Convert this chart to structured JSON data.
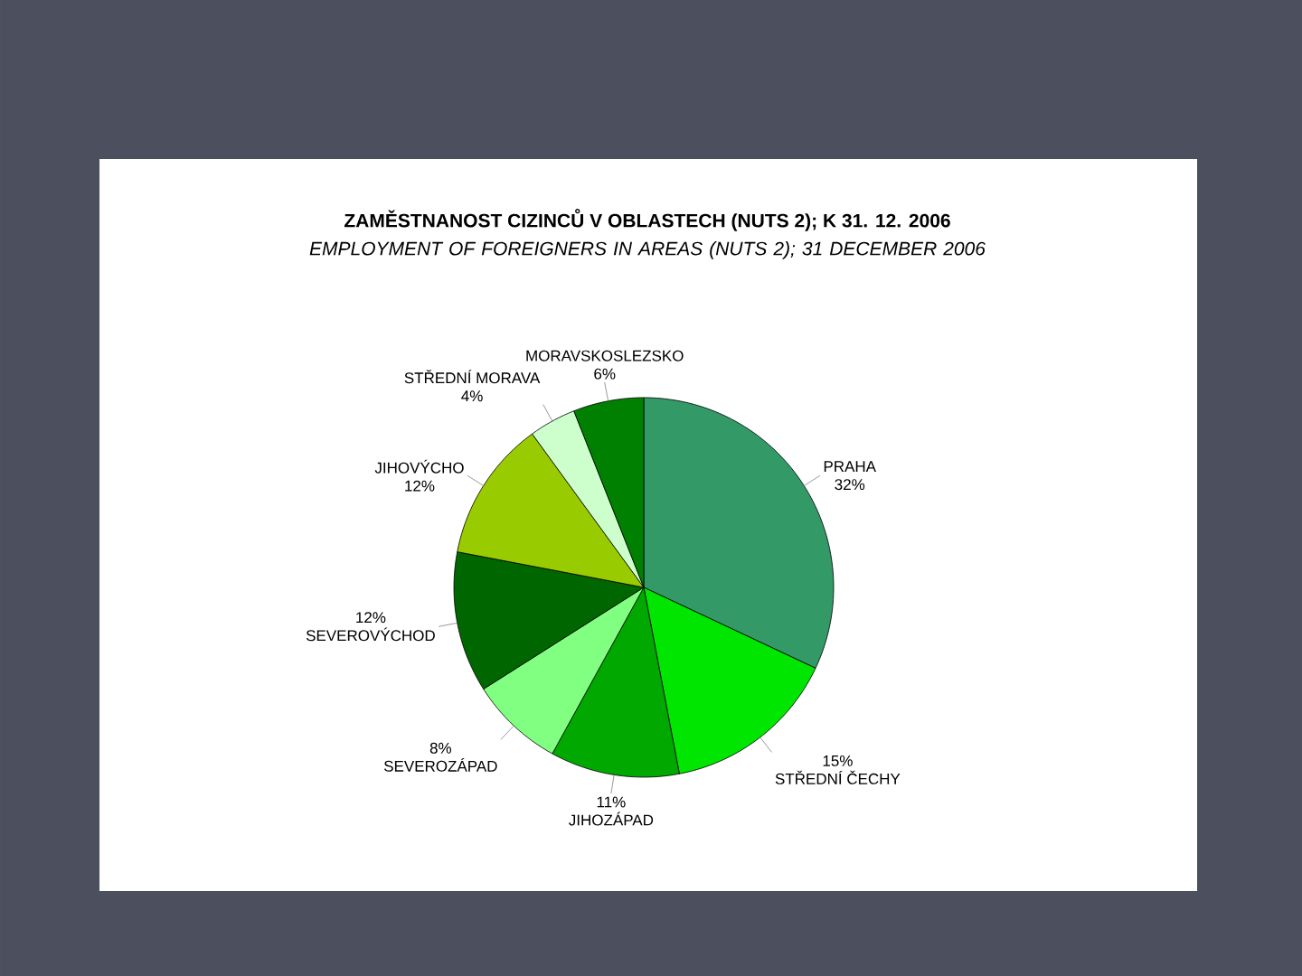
{
  "chart_data": {
    "type": "pie",
    "title": "ZAMĚSTNANOST CIZINCŮ V OBLASTECH (NUTS 2); K 31. 12. 2006",
    "subtitle": "EMPLOYMENT OF FOREIGNERS IN AREAS (NUTS 2); 31 DECEMBER 2006",
    "categories": [
      "PRAHA",
      "STŘEDNÍ ČECHY",
      "JIHOZÁPAD",
      "SEVEROZÁPAD",
      "SEVEROVÝCHOD",
      "JIHOVÝCHO",
      "STŘEDNÍ MORAVA",
      "MORAVSKOSLEZSKO"
    ],
    "values": [
      32,
      15,
      11,
      8,
      12,
      12,
      4,
      6
    ],
    "value_labels": [
      "32%",
      "15%",
      "11%",
      "8%",
      "12%",
      "12%",
      "4%",
      "6%"
    ],
    "colors": [
      "#339966",
      "#00e600",
      "#00a800",
      "#80ff80",
      "#006600",
      "#99cc00",
      "#ccffcc",
      "#008000"
    ]
  }
}
